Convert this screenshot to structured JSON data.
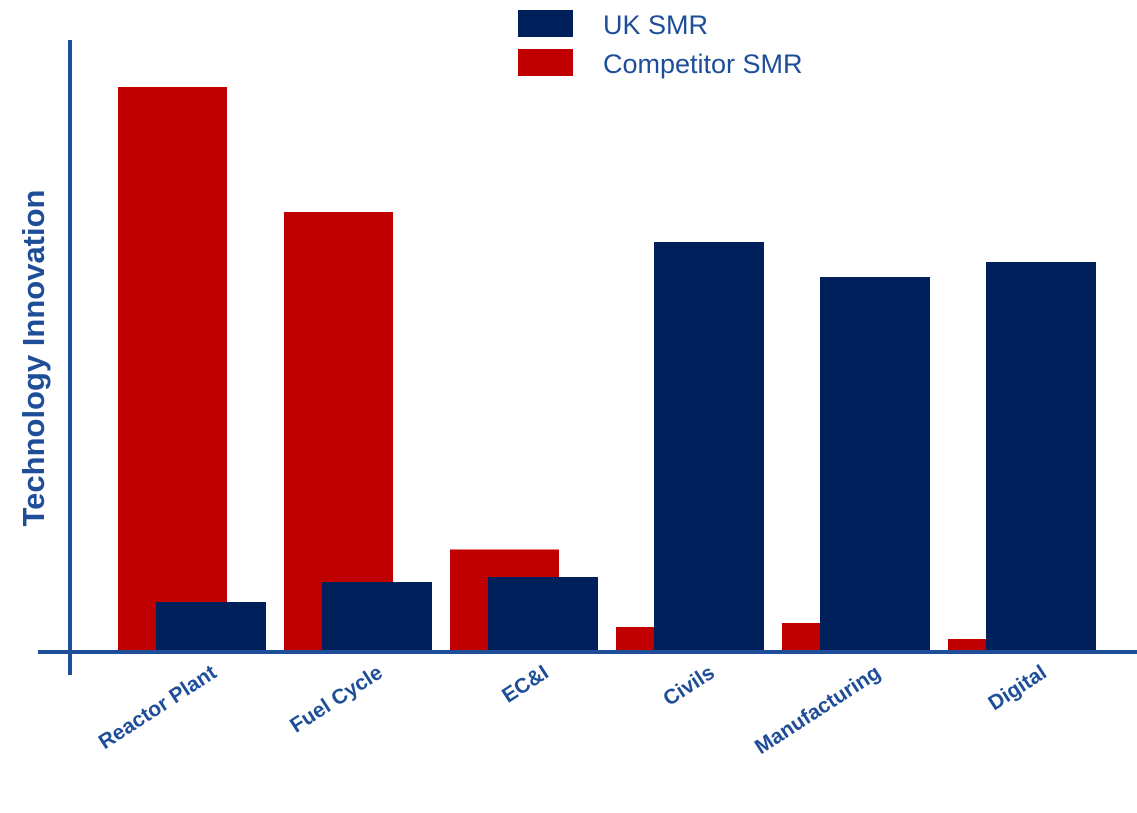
{
  "colors": {
    "uk": "#00205B",
    "competitor": "#C00000",
    "axis": "#1F4E99",
    "text": "#1F4E99"
  },
  "chart_data": {
    "type": "bar",
    "ylabel": "Technology Innovation",
    "xlabel": "",
    "categories": [
      "Reactor Plant",
      "Fuel Cycle",
      "EC&I",
      "Civils",
      "Manufacturing",
      "Digital"
    ],
    "series": [
      {
        "name": "UK SMR",
        "values": [
          10,
          14,
          15,
          82,
          75,
          78
        ]
      },
      {
        "name": "Competitor SMR",
        "values": [
          113,
          88,
          20.5,
          5,
          5.8,
          2.6
        ]
      }
    ],
    "ylim": [
      0,
      112
    ],
    "grid": false,
    "legend": "top-center"
  }
}
